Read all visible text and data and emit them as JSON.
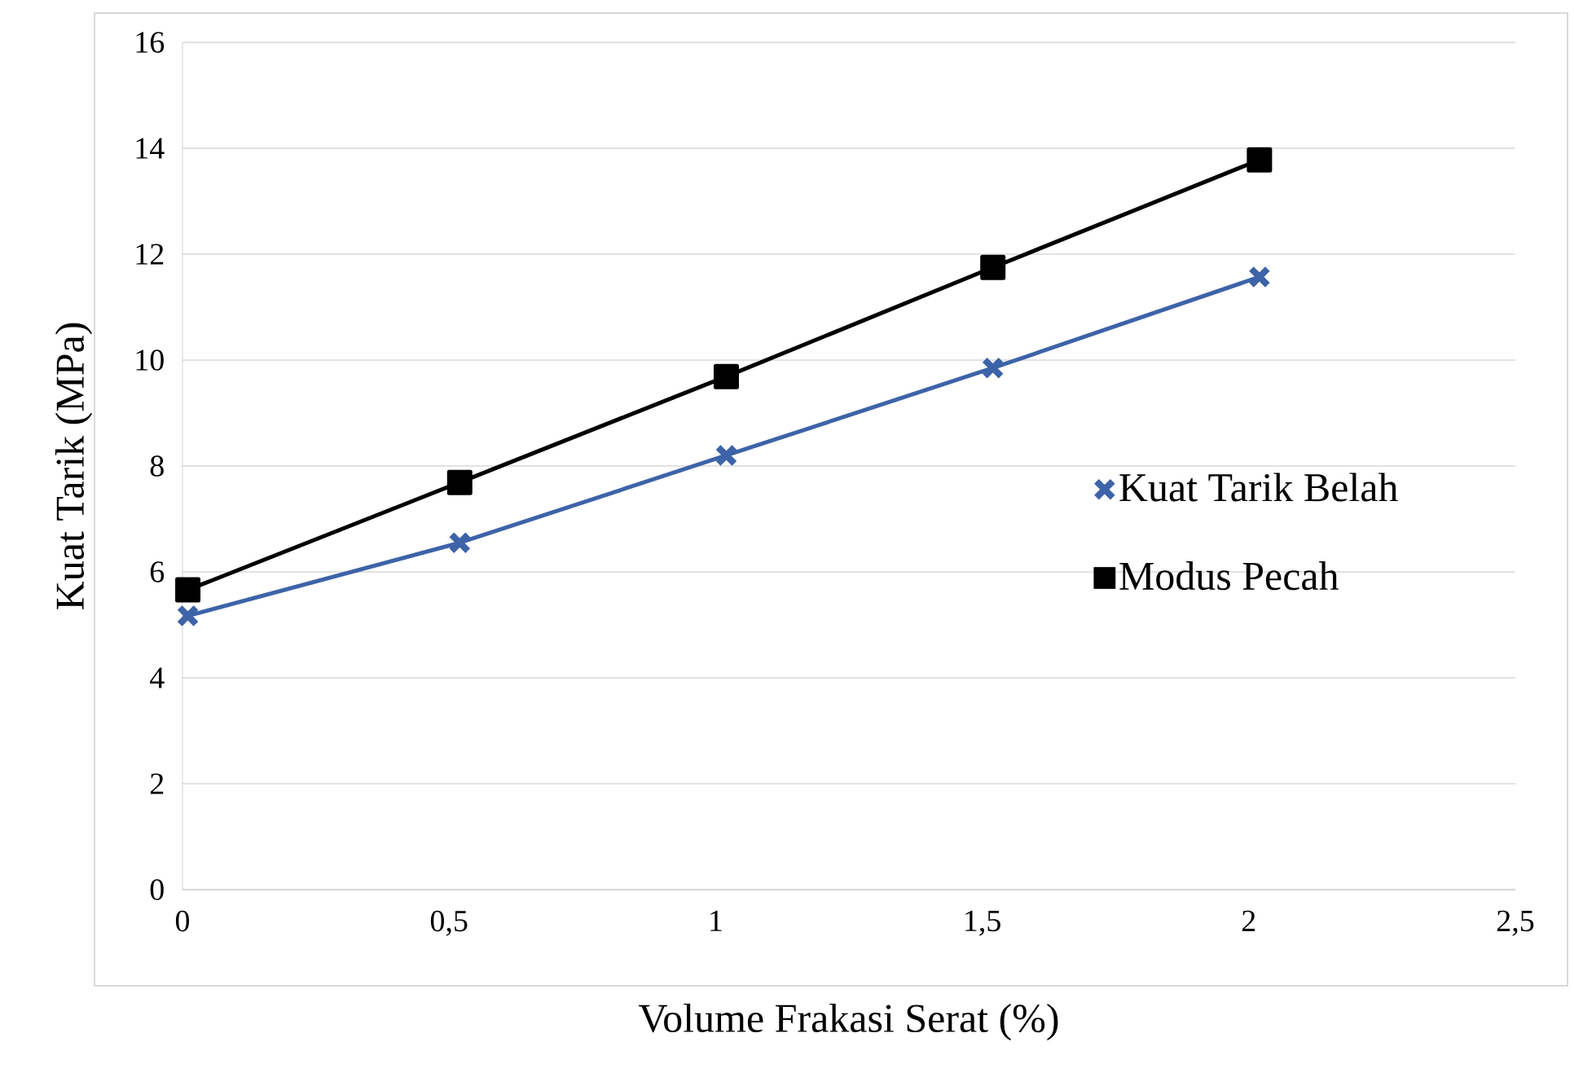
{
  "chart_data": {
    "type": "line",
    "xlabel": "Volume Frakasi Serat (%)",
    "ylabel": "Kuat Tarik (MPa)",
    "xlim": [
      0,
      2.5
    ],
    "ylim": [
      0,
      16
    ],
    "xticks": [
      0,
      {
        "value": 0.5,
        "label": "0,5"
      },
      1,
      {
        "value": 1.5,
        "label": "1,5"
      },
      2,
      {
        "value": 2.5,
        "label": "2,5"
      }
    ],
    "yticks": [
      0,
      2,
      4,
      6,
      8,
      10,
      12,
      14,
      16
    ],
    "grid": "y",
    "legend": "right",
    "series": [
      {
        "name": "Kuat Tarik Belah",
        "color": "#3d63a8",
        "marker": "cross",
        "x": [
          0.01,
          0.52,
          1.02,
          1.52,
          2.02
        ],
        "values": [
          5.17,
          6.55,
          8.2,
          9.85,
          11.57
        ]
      },
      {
        "name": "Modus Pecah",
        "color": "#000000",
        "marker": "square",
        "x": [
          0.01,
          0.52,
          1.02,
          1.52,
          2.02
        ],
        "values": [
          5.66,
          7.69,
          9.69,
          11.75,
          13.78
        ]
      }
    ]
  }
}
